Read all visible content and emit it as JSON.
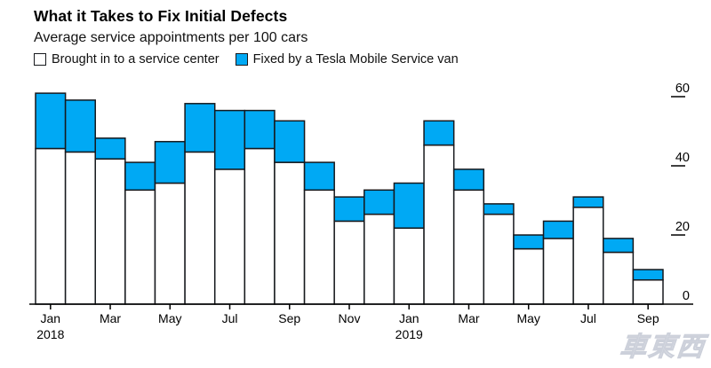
{
  "title": "What it Takes to Fix Initial Defects",
  "subtitle": "Average service appointments per 100 cars",
  "legend": [
    {
      "label": "Brought in to a service center",
      "color": "#ffffff"
    },
    {
      "label": "Fixed by a Tesla Mobile Service van",
      "color": "#00a9f4"
    }
  ],
  "watermark": "車東西",
  "colors": {
    "bar_white": "#ffffff",
    "bar_blue": "#00a9f4",
    "bar_border": "#16191d",
    "axis": "#000000",
    "text": "#111111"
  },
  "chart_data": {
    "type": "bar",
    "stacked": true,
    "title": "What it Takes to Fix Initial Defects",
    "subtitle": "Average service appointments per 100 cars",
    "xlabel": "",
    "ylabel": "",
    "grid": false,
    "legend_position": "top-left",
    "y_axis_side": "right",
    "ylim": [
      0,
      63
    ],
    "y_ticks": [
      0,
      20,
      40,
      60
    ],
    "categories": [
      "Jan 2018",
      "Feb 2018",
      "Mar 2018",
      "Apr 2018",
      "May 2018",
      "Jun 2018",
      "Jul 2018",
      "Aug 2018",
      "Sep 2018",
      "Oct 2018",
      "Nov 2018",
      "Dec 2018",
      "Jan 2019",
      "Feb 2019",
      "Mar 2019",
      "Apr 2019",
      "May 2019",
      "Jun 2019",
      "Jul 2019",
      "Aug 2019",
      "Sep 2019"
    ],
    "series": [
      {
        "name": "Brought in to a service center",
        "color": "#ffffff",
        "values": [
          45,
          44,
          42,
          33,
          35,
          44,
          39,
          45,
          41,
          33,
          24,
          26,
          22,
          46,
          33,
          26,
          16,
          19,
          28,
          15,
          7
        ]
      },
      {
        "name": "Fixed by a Tesla Mobile Service van",
        "color": "#00a9f4",
        "values": [
          16,
          15,
          6,
          8,
          12,
          14,
          17,
          11,
          12,
          8,
          7,
          7,
          13,
          7,
          6,
          3,
          4,
          5,
          3,
          4,
          3
        ]
      }
    ],
    "totals": [
      61,
      59,
      48,
      41,
      47,
      58,
      56,
      56,
      53,
      41,
      31,
      33,
      35,
      53,
      39,
      29,
      20,
      24,
      31,
      19,
      10
    ],
    "x_tick_labels": [
      "Jan",
      "Mar",
      "May",
      "Jul",
      "Sep",
      "Nov",
      "Jan",
      "Mar",
      "May",
      "Jul",
      "Sep"
    ],
    "x_year_labels": [
      {
        "tick_index": 0,
        "label": "2018"
      },
      {
        "tick_index": 6,
        "label": "2019"
      }
    ]
  }
}
